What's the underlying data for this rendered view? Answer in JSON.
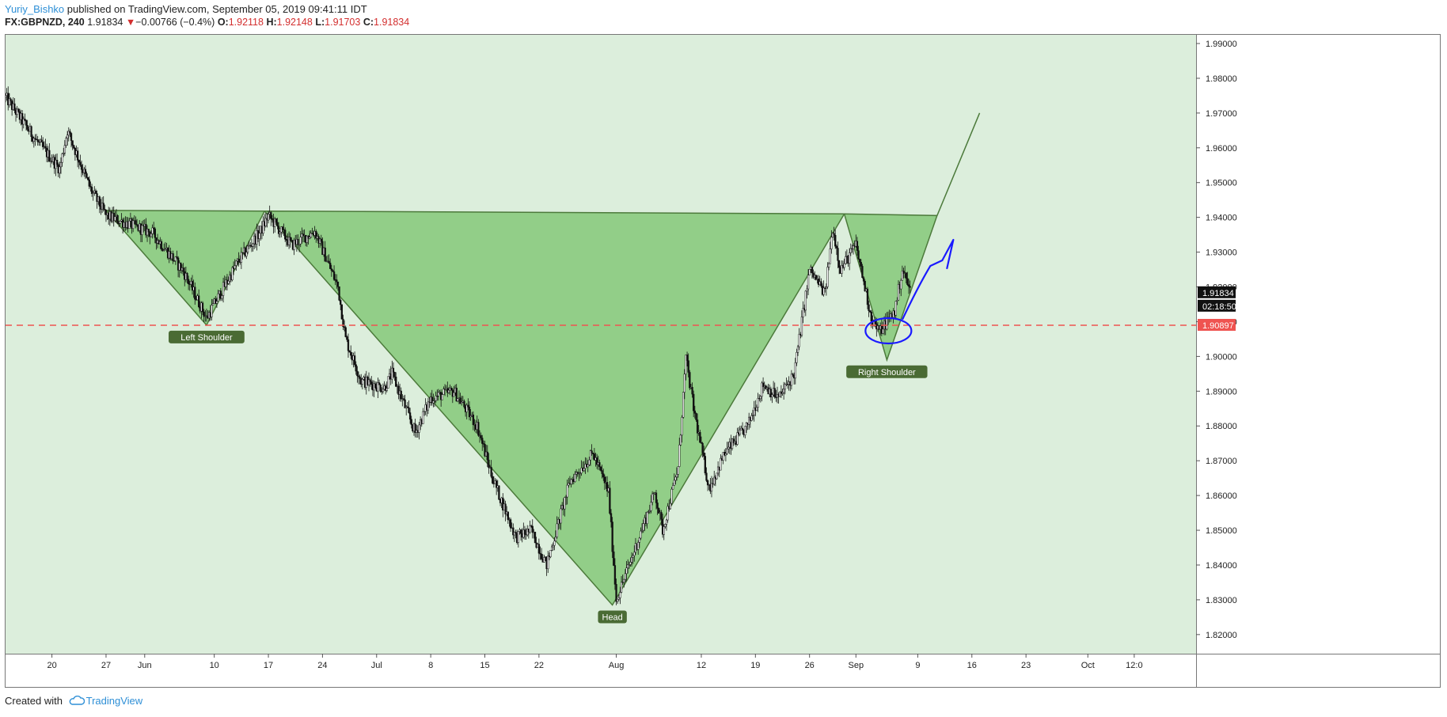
{
  "header": {
    "author": "Yuriy_Bishko",
    "published_text": " published on TradingView.com, September 05, 2019 09:41:11 IDT",
    "symbol": "FX:GBPNZD, 240",
    "last": "1.91834",
    "change_arrow": "▼",
    "change": "−0.00766 (−0.4%)",
    "o_label": "O:",
    "o_value": "1.92118",
    "h_label": "H:",
    "h_value": "1.92148",
    "l_label": "L:",
    "l_value": "1.91703",
    "c_label": "C:",
    "c_value": "1.91834"
  },
  "footer": {
    "created_with": "Created with",
    "brand": "TradingView"
  },
  "chart_data": {
    "type": "candlestick",
    "symbol": "FX:GBPNZD",
    "interval": "240",
    "y_range": [
      1.8145,
      1.9925
    ],
    "y_ticks": [
      "1.99000",
      "1.98000",
      "1.97000",
      "1.96000",
      "1.95000",
      "1.94000",
      "1.93000",
      "1.92000",
      "1.91000",
      "1.90000",
      "1.89000",
      "1.88000",
      "1.87000",
      "1.86000",
      "1.85000",
      "1.84000",
      "1.83000",
      "1.82000"
    ],
    "x_day_range": [
      0,
      154
    ],
    "x_ticks": [
      {
        "label": "20",
        "day": 6
      },
      {
        "label": "27",
        "day": 13
      },
      {
        "label": "Jun",
        "day": 18
      },
      {
        "label": "10",
        "day": 27
      },
      {
        "label": "17",
        "day": 34
      },
      {
        "label": "24",
        "day": 41
      },
      {
        "label": "Jul",
        "day": 48
      },
      {
        "label": "8",
        "day": 55
      },
      {
        "label": "15",
        "day": 62
      },
      {
        "label": "22",
        "day": 69
      },
      {
        "label": "Aug",
        "day": 79
      },
      {
        "label": "12",
        "day": 90
      },
      {
        "label": "19",
        "day": 97
      },
      {
        "label": "26",
        "day": 104
      },
      {
        "label": "Sep",
        "day": 110
      },
      {
        "label": "9",
        "day": 118
      },
      {
        "label": "16",
        "day": 125
      },
      {
        "label": "23",
        "day": 132
      },
      {
        "label": "Oct",
        "day": 140
      },
      {
        "label": "12:0",
        "day": 146
      }
    ],
    "price_path": [
      [
        0,
        1.9745
      ],
      [
        4,
        1.962
      ],
      [
        7,
        1.954
      ],
      [
        8,
        1.965
      ],
      [
        11,
        1.948
      ],
      [
        13,
        1.9405
      ],
      [
        16,
        1.938
      ],
      [
        19,
        1.9355
      ],
      [
        23,
        1.9245
      ],
      [
        26,
        1.911
      ],
      [
        30,
        1.927
      ],
      [
        33,
        1.936
      ],
      [
        34,
        1.9405
      ],
      [
        37,
        1.932
      ],
      [
        40,
        1.936
      ],
      [
        43,
        1.92
      ],
      [
        44,
        1.905
      ],
      [
        46,
        1.893
      ],
      [
        49,
        1.891
      ],
      [
        50,
        1.895
      ],
      [
        53,
        1.878
      ],
      [
        55,
        1.888
      ],
      [
        58,
        1.89
      ],
      [
        61,
        1.88
      ],
      [
        63,
        1.865
      ],
      [
        66,
        1.848
      ],
      [
        68,
        1.85
      ],
      [
        70,
        1.84
      ],
      [
        73,
        1.864
      ],
      [
        76,
        1.872
      ],
      [
        78,
        1.861
      ],
      [
        79,
        1.83
      ],
      [
        81,
        1.842
      ],
      [
        84,
        1.861
      ],
      [
        85,
        1.85
      ],
      [
        87,
        1.868
      ],
      [
        88,
        1.8995
      ],
      [
        89,
        1.885
      ],
      [
        91,
        1.862
      ],
      [
        93,
        1.872
      ],
      [
        96,
        1.88
      ],
      [
        98,
        1.892
      ],
      [
        100,
        1.888
      ],
      [
        102,
        1.895
      ],
      [
        104,
        1.925
      ],
      [
        106,
        1.918
      ],
      [
        107,
        1.937
      ],
      [
        108,
        1.925
      ],
      [
        110,
        1.932
      ],
      [
        112,
        1.911
      ],
      [
        113,
        1.907
      ],
      [
        115,
        1.913
      ],
      [
        116,
        1.925
      ],
      [
        117,
        1.919
      ]
    ],
    "horizontal_line": {
      "price": 1.90897,
      "label": "1.90897",
      "color": "#ef5350",
      "style": "dashed"
    },
    "last_price": {
      "label": "1.91834",
      "countdown": "02:18:50"
    },
    "pattern": {
      "name": "inverse head and shoulders",
      "fill": "#8dcb83",
      "stroke": "#4c7a3b",
      "points": {
        "start": [
          13,
          1.942
        ],
        "left_shoulder": [
          26,
          1.909
        ],
        "neck1": [
          33.5,
          1.9418
        ],
        "head": [
          78.5,
          1.8285
        ],
        "neck2": [
          108.5,
          1.941
        ],
        "right_shoulder": [
          114,
          1.899
        ],
        "end": [
          120.5,
          1.9405
        ],
        "target": [
          126,
          1.97
        ]
      },
      "labels": [
        "Left Shoulder",
        "Head",
        "Right Shoulder"
      ]
    },
    "background": "#dceedc",
    "candle_color": "#111111",
    "annotation_color": "#1a1aff"
  }
}
